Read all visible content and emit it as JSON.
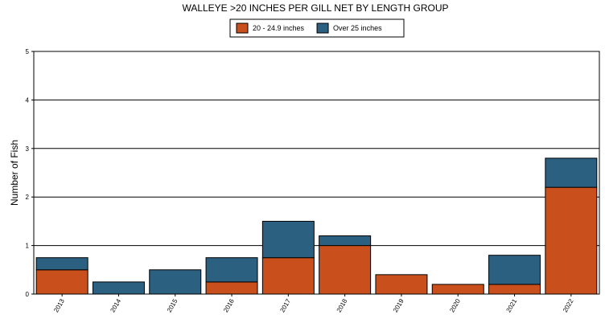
{
  "chart_data": {
    "type": "bar",
    "stacked": true,
    "title": "WALLEYE >20 INCHES PER GILL NET BY LENGTH GROUP",
    "y_label": "Number of Fish",
    "categories": [
      "2013",
      "2014",
      "2015",
      "2016",
      "2017",
      "2018",
      "2019",
      "2020",
      "2021",
      "2022"
    ],
    "series": [
      {
        "name": "20 - 24.9 inches",
        "color": "#c9501c",
        "values": [
          0.5,
          0,
          0,
          0.25,
          0.75,
          1.0,
          0.4,
          0.2,
          0.2,
          2.2
        ]
      },
      {
        "name": "Over 25 inches",
        "color": "#2c6081",
        "values": [
          0.25,
          0.25,
          0.5,
          0.5,
          0.75,
          0.2,
          0,
          0,
          0.6,
          0.6
        ]
      }
    ],
    "ylim": [
      0,
      5
    ],
    "yticks": [
      0,
      1,
      2,
      3,
      4,
      5
    ],
    "grid": true,
    "legend": "top"
  }
}
